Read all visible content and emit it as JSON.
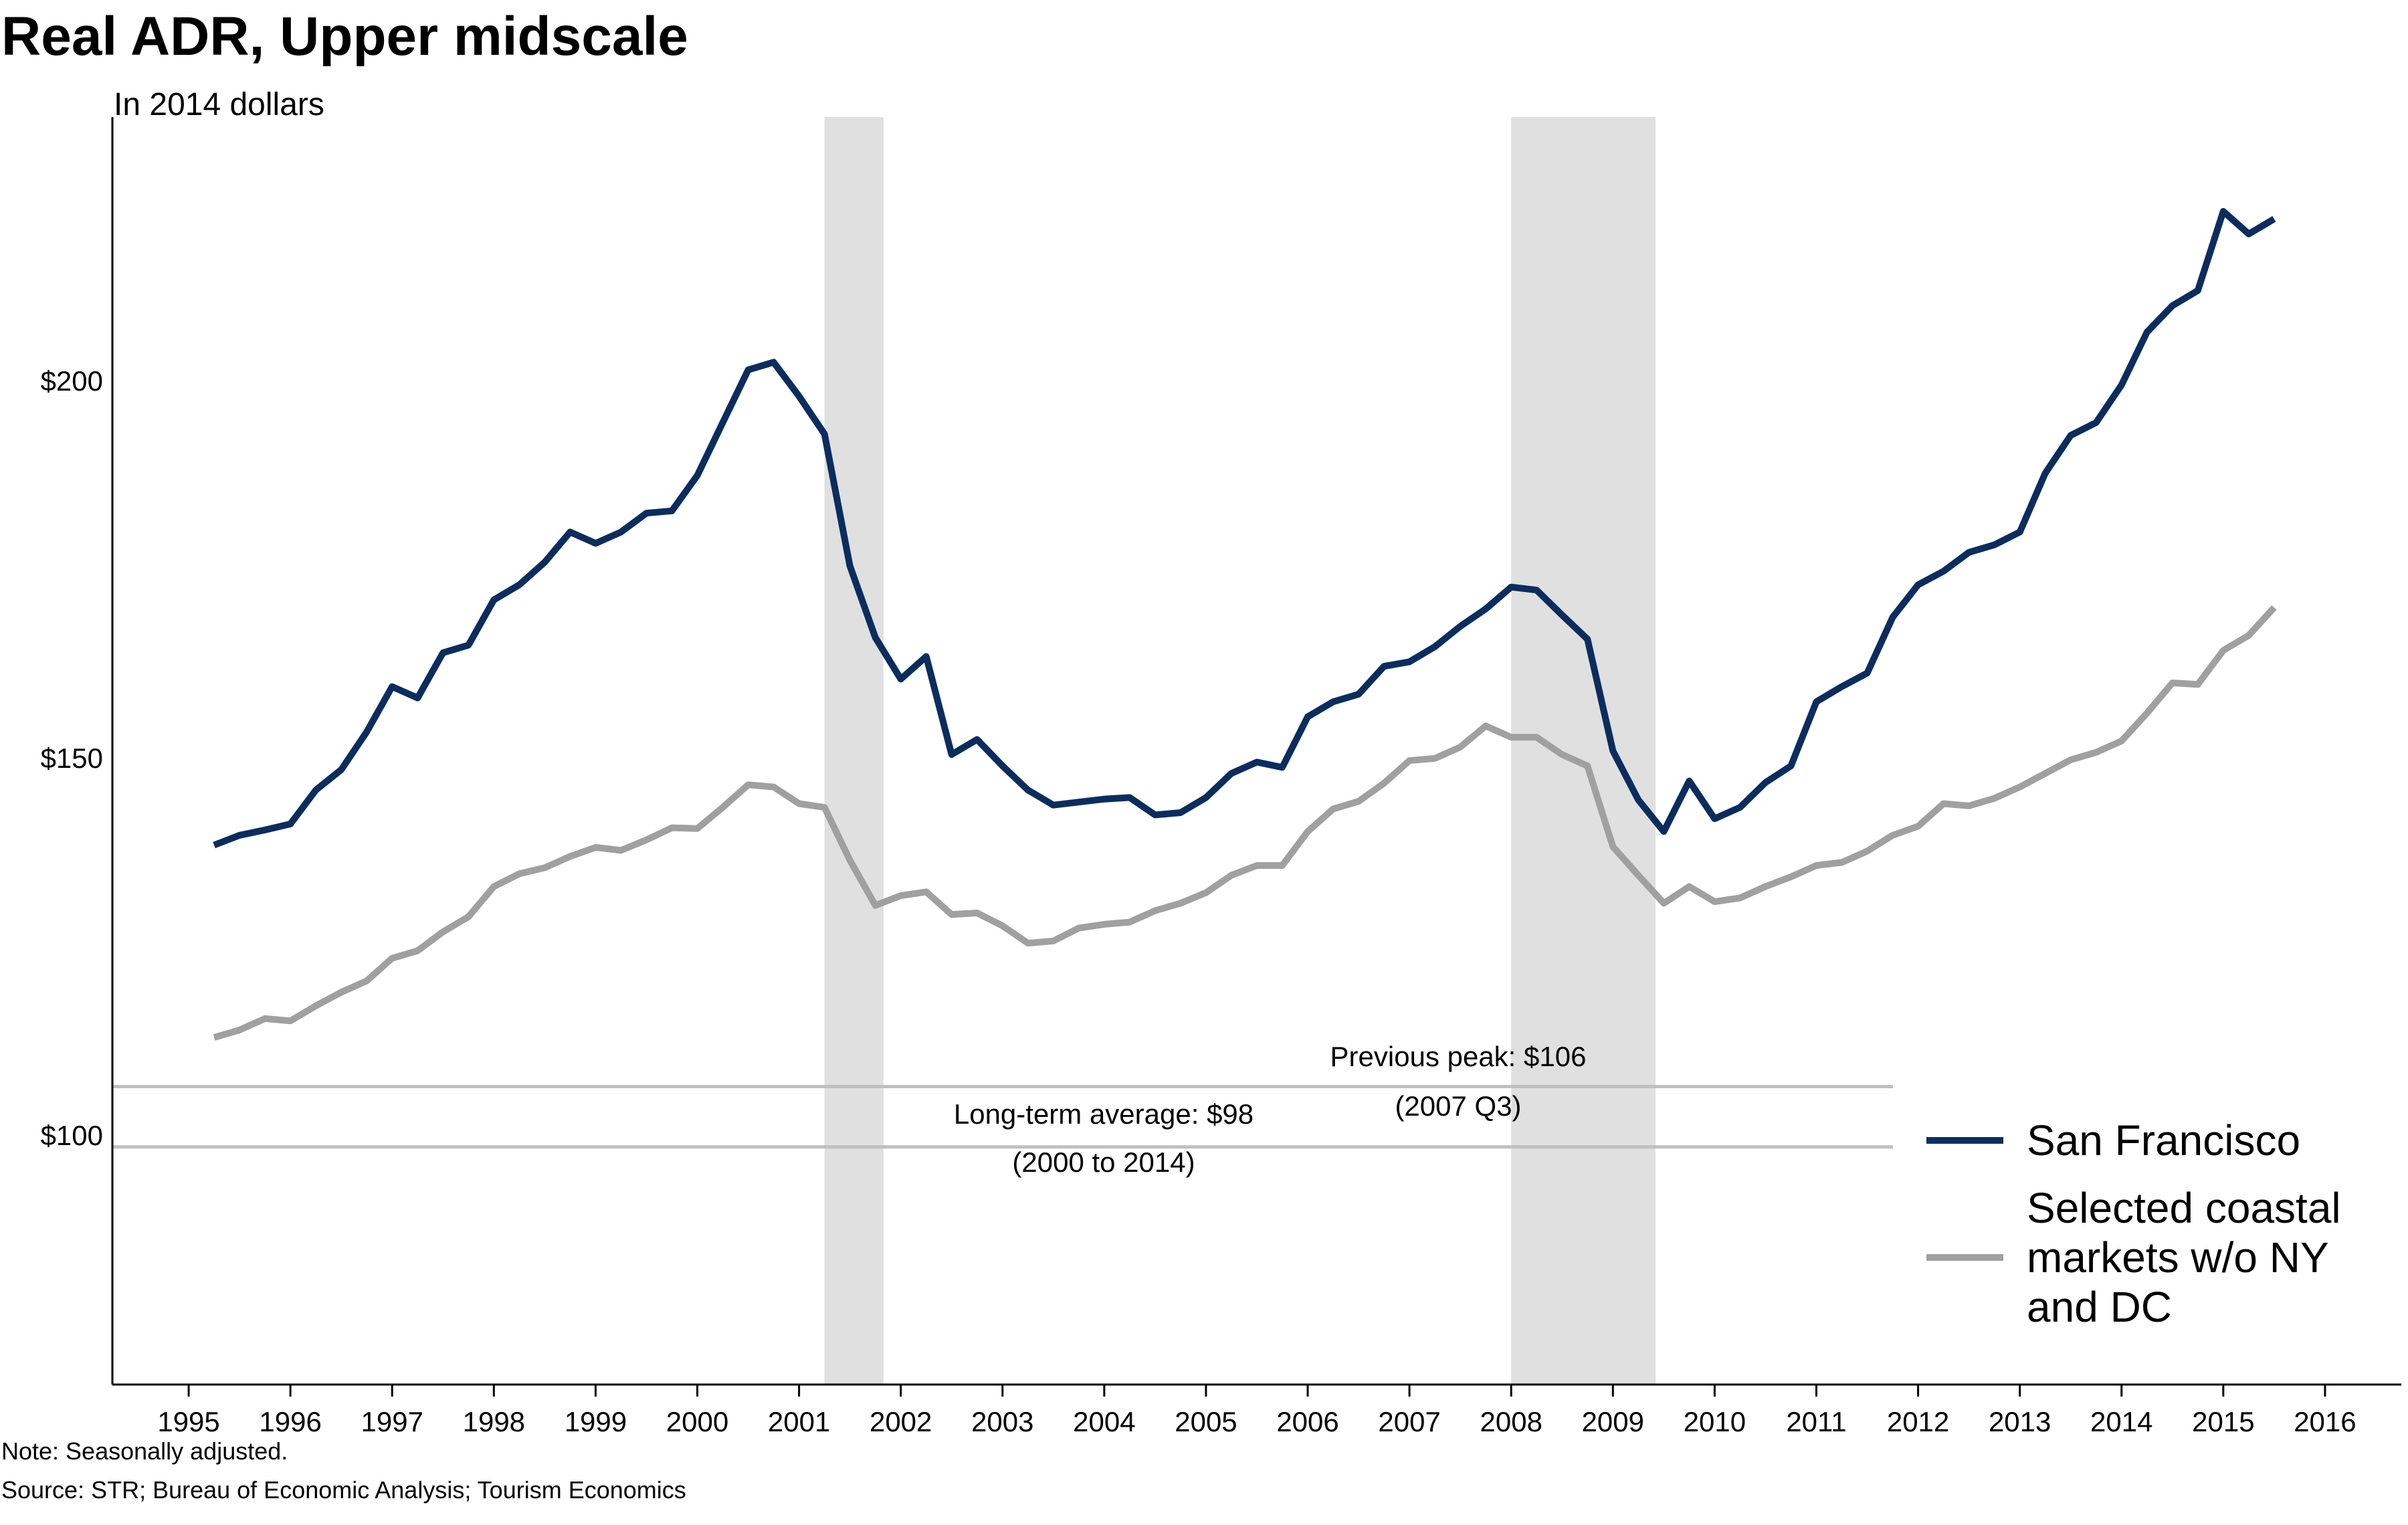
{
  "title": "Real ADR, Upper midscale",
  "subtitle": "In 2014 dollars",
  "note": "Note: Seasonally adjusted.",
  "source": "Source: STR; Bureau of Economic Analysis; Tourism Economics",
  "colors": {
    "san_francisco": "#0b2d5e",
    "coastal": "#a0a0a0",
    "recession": "#e0e0e0",
    "reference_line": "#c0c0c0",
    "axis": "#000000"
  },
  "chart_data": {
    "type": "line",
    "xlim": [
      1994.25,
      2016.75
    ],
    "ylim": [
      67,
      235
    ],
    "y_ticks": [
      {
        "value": 100,
        "label": "$100"
      },
      {
        "value": 150,
        "label": "$150"
      },
      {
        "value": 200,
        "label": "$200"
      }
    ],
    "x_ticks": [
      "1995",
      "1996",
      "1997",
      "1998",
      "1999",
      "2000",
      "2001",
      "2002",
      "2003",
      "2004",
      "2005",
      "2006",
      "2007",
      "2008",
      "2009",
      "2010",
      "2011",
      "2012",
      "2013",
      "2014",
      "2015",
      "2016"
    ],
    "recessions": [
      {
        "start": 2001.25,
        "end": 2001.83
      },
      {
        "start": 2008.0,
        "end": 2009.42
      }
    ],
    "reference_lines": [
      {
        "value": 106.5,
        "label_line1": "Previous peak: $106",
        "label_line2": "(2007 Q3)"
      },
      {
        "value": 98.5,
        "label_line1": "Long-term average: $98",
        "label_line2": "(2000 to 2014)"
      }
    ],
    "series": [
      {
        "name": "San Francisco",
        "start": 1995.25,
        "step": 0.25,
        "values": [
          138.5,
          139.8,
          140.5,
          141.3,
          145.8,
          148.5,
          153.5,
          159.5,
          158,
          164,
          165,
          171,
          173,
          176,
          180,
          178.5,
          180,
          182.5,
          182.8,
          187.5,
          194.5,
          201.5,
          202.5,
          198,
          193,
          175.5,
          166,
          160.5,
          163.5,
          150.5,
          152.5,
          149,
          145.8,
          143.8,
          144.2,
          144.6,
          144.8,
          142.5,
          142.8,
          144.8,
          148,
          149.5,
          148.8,
          155.5,
          157.5,
          158.5,
          162.2,
          162.8,
          164.8,
          167.5,
          169.8,
          172.7,
          172.3,
          169,
          165.8,
          151,
          144.5,
          140.3,
          147,
          142,
          143.5,
          146.8,
          149,
          157.5,
          159.5,
          161.3,
          168.7,
          173,
          174.8,
          177.3,
          178.3,
          180,
          187.8,
          192.8,
          194.5,
          199.5,
          206.5,
          210,
          212,
          222.5,
          219.5,
          221.5
        ]
      },
      {
        "name": "Selected coastal markets w/o NY and DC",
        "start": 1995.25,
        "step": 0.25,
        "values": [
          113,
          114,
          115.5,
          115.2,
          117.2,
          119,
          120.5,
          123.5,
          124.5,
          127,
          129,
          133,
          134.7,
          135.5,
          137,
          138.2,
          137.8,
          139.2,
          140.8,
          140.7,
          143.5,
          146.5,
          146.2,
          144,
          143.5,
          136.5,
          130.5,
          131.8,
          132.3,
          129.3,
          129.5,
          127.8,
          125.5,
          125.8,
          127.5,
          128,
          128.3,
          129.8,
          130.8,
          132.2,
          134.5,
          135.8,
          135.8,
          140.3,
          143.3,
          144.3,
          146.7,
          149.7,
          150,
          151.5,
          154.3,
          152.8,
          152.8,
          150.5,
          149,
          138.3,
          134.5,
          130.8,
          133,
          131,
          131.5,
          133,
          134.3,
          135.8,
          136.2,
          137.7,
          139.8,
          141,
          144,
          143.7,
          144.7,
          146.2,
          148,
          149.8,
          150.8,
          152.3,
          156,
          160,
          159.8,
          164.3,
          166.3,
          170
        ]
      }
    ]
  }
}
